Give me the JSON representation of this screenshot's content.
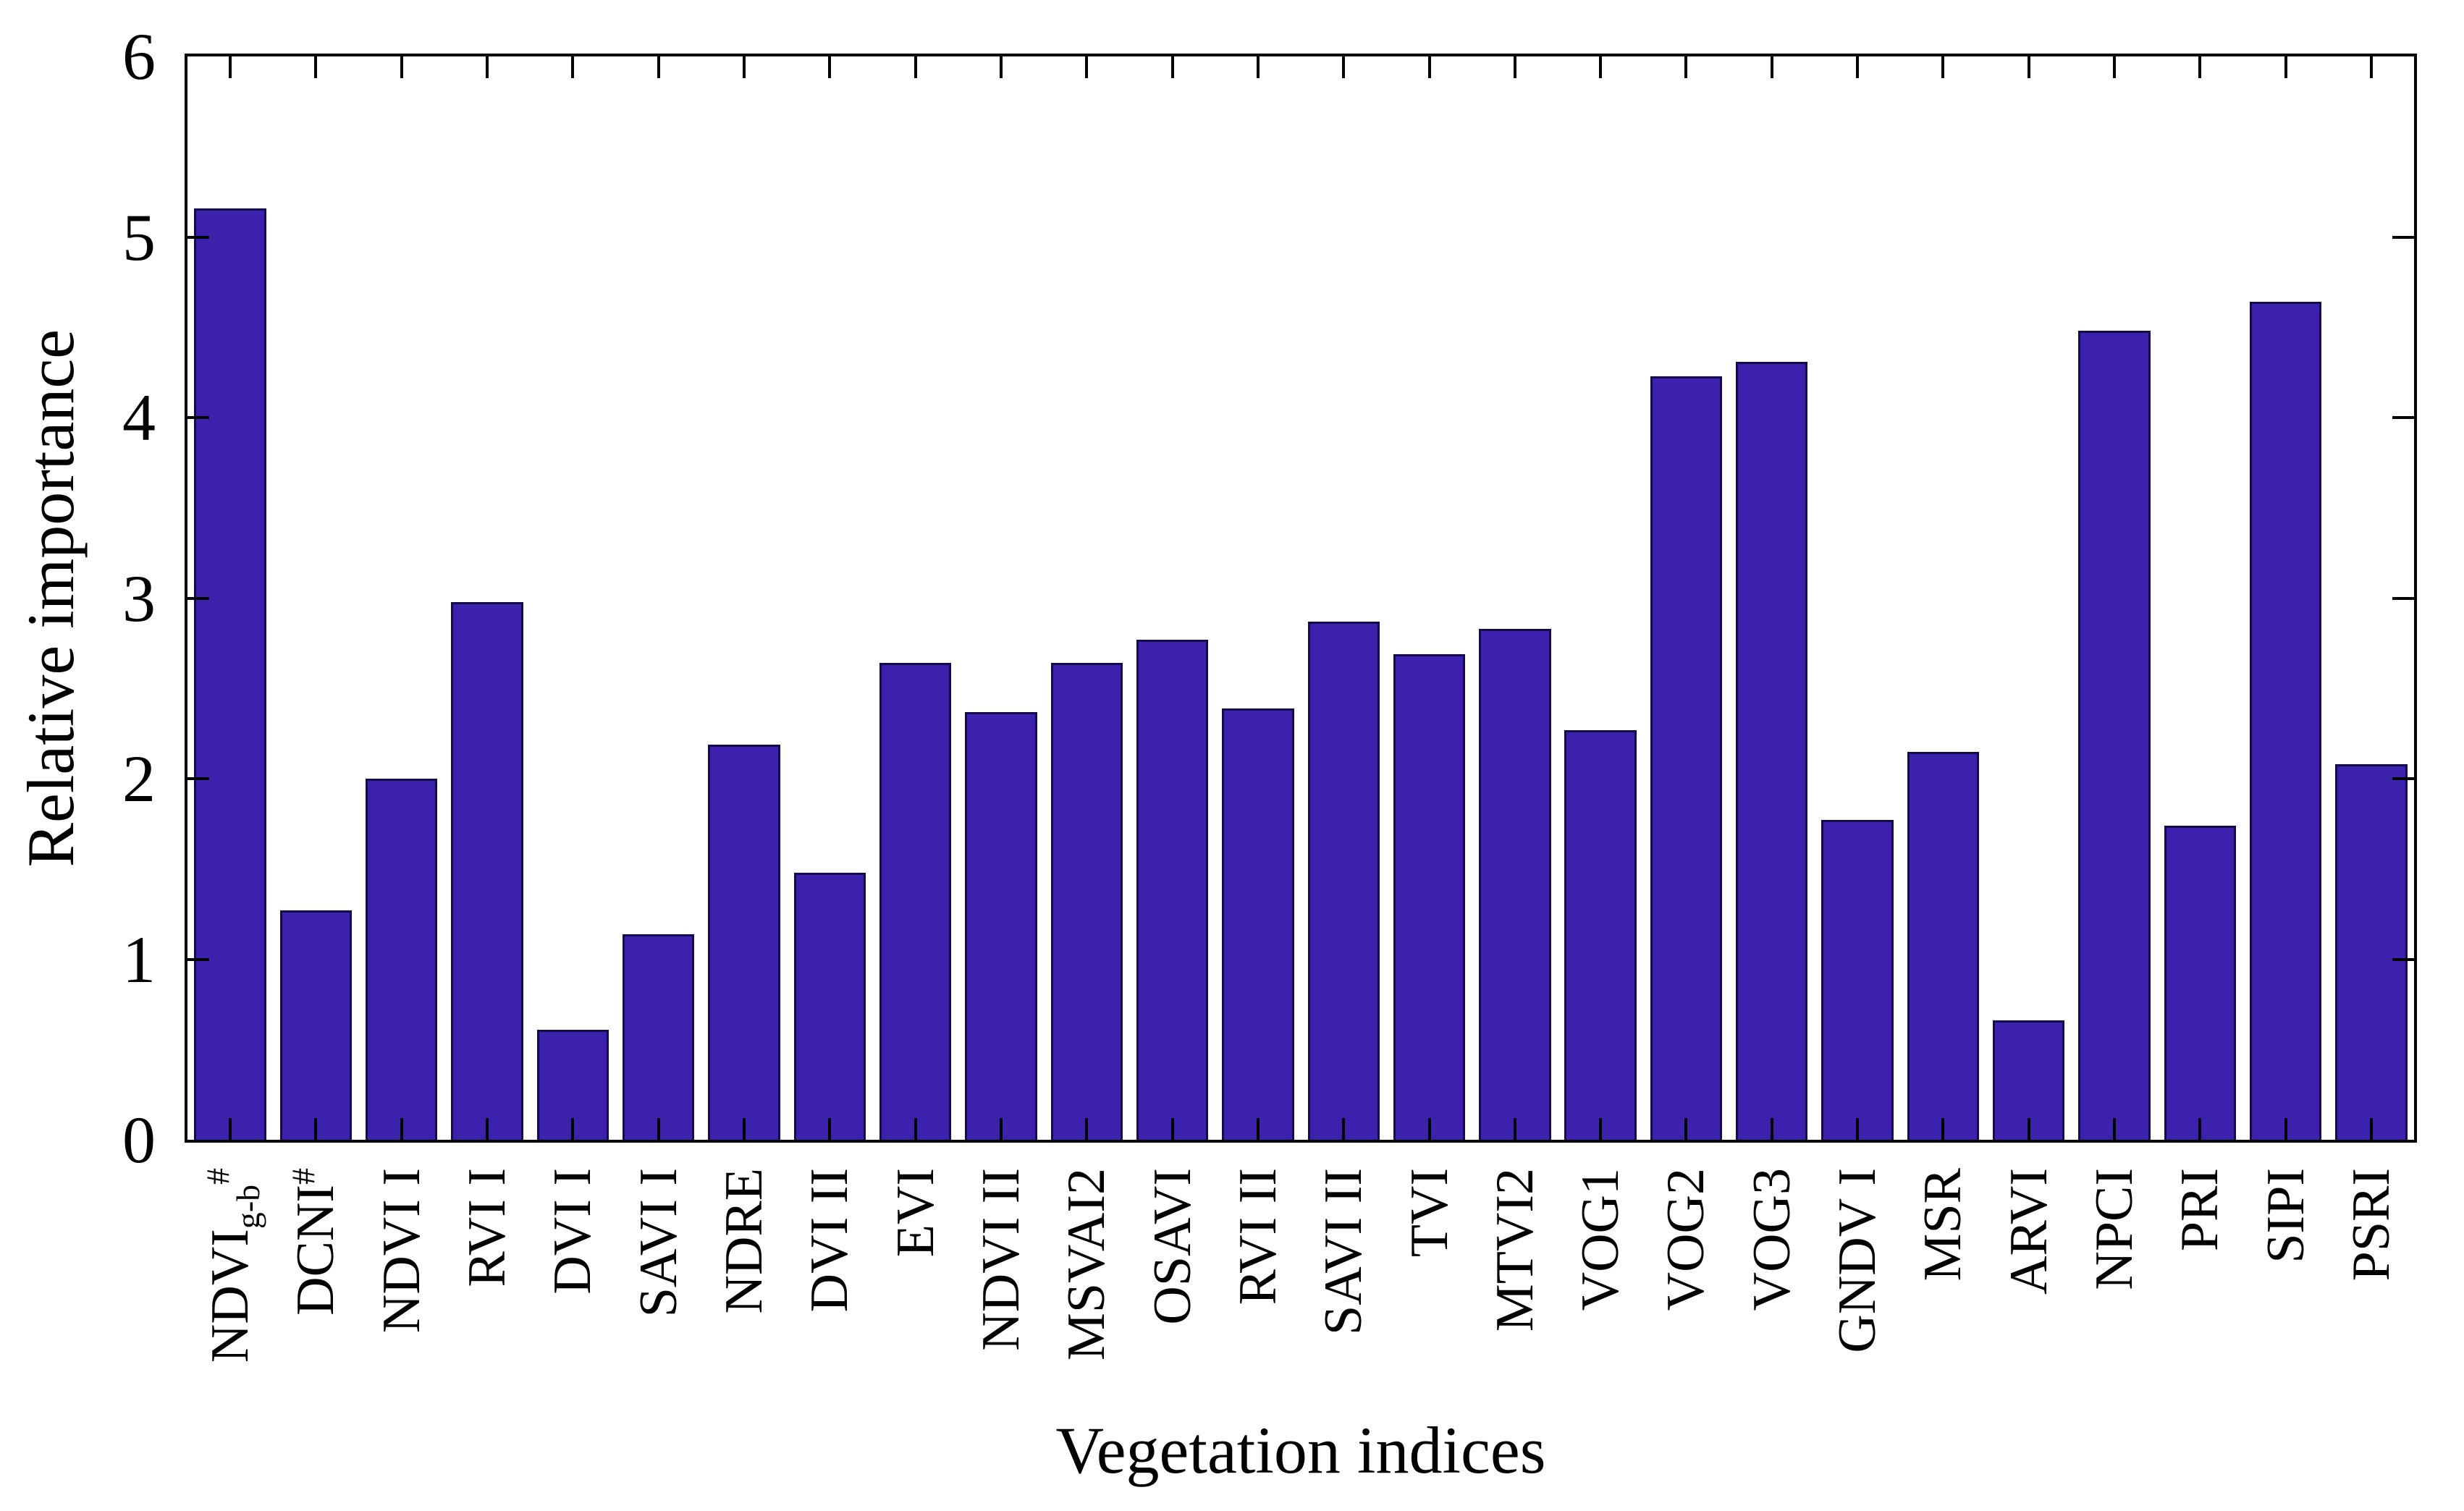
{
  "chart_data": {
    "type": "bar",
    "title": "",
    "xlabel": "Vegetation indices",
    "ylabel": "Relative importance",
    "ylim": [
      0,
      6
    ],
    "yticks": [
      "0",
      "1",
      "2",
      "3",
      "4",
      "5",
      "6"
    ],
    "grid": false,
    "legend": false,
    "frame": "box with inward ticks on all four sides",
    "bar_color": "#3B21AB",
    "bar_edge_color": "#130B4D",
    "axis_color": "#000000",
    "categories": [
      {
        "text": "NDVI",
        "sub": "g-b",
        "sup": "#"
      },
      {
        "text": "DCNI",
        "sup": "#"
      },
      {
        "text": "NDVI I"
      },
      {
        "text": "RVI I"
      },
      {
        "text": "DVI I"
      },
      {
        "text": "SAVI I"
      },
      {
        "text": "NDRE"
      },
      {
        "text": "DVI II"
      },
      {
        "text": "EVI"
      },
      {
        "text": "NDVI II"
      },
      {
        "text": "MSVAI2"
      },
      {
        "text": "OSAVI"
      },
      {
        "text": "RVI II"
      },
      {
        "text": "SAVI II"
      },
      {
        "text": "TVI"
      },
      {
        "text": "MTVI2"
      },
      {
        "text": "VOG1"
      },
      {
        "text": "VOG2"
      },
      {
        "text": "VOG3"
      },
      {
        "text": "GNDV I"
      },
      {
        "text": "MSR"
      },
      {
        "text": "ARVI"
      },
      {
        "text": "NPCI"
      },
      {
        "text": "PRI"
      },
      {
        "text": "SIPI"
      },
      {
        "text": "PSRI"
      }
    ],
    "values": [
      5.16,
      1.27,
      2.0,
      2.98,
      0.61,
      1.14,
      2.19,
      1.48,
      2.64,
      2.37,
      2.64,
      2.77,
      2.39,
      2.87,
      2.69,
      2.83,
      2.27,
      4.23,
      4.31,
      1.77,
      2.15,
      0.66,
      4.48,
      1.74,
      4.64,
      2.08
    ]
  }
}
